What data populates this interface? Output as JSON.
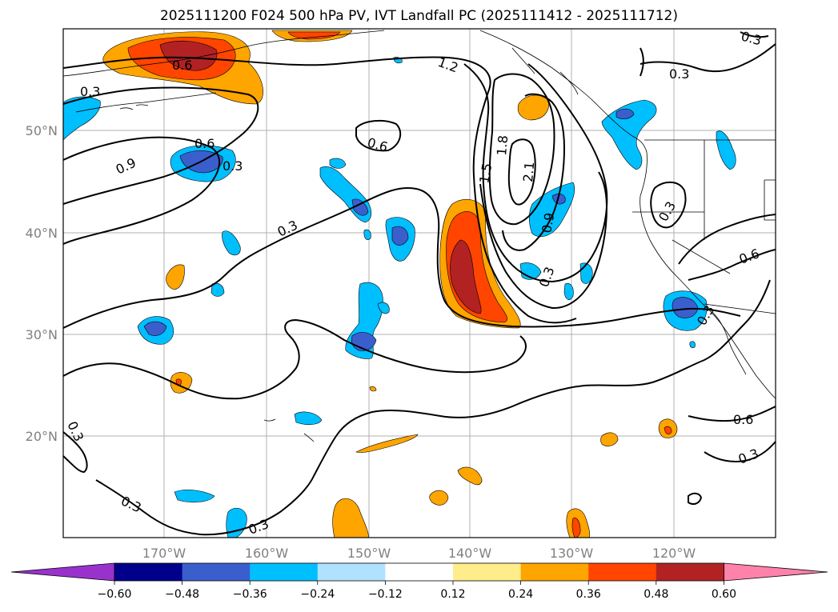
{
  "title": "2025111200 F024 500 hPa PV, IVT Landfall PC (2025111412 - 2025111712)",
  "map": {
    "lon_labels": [
      "170°W",
      "160°W",
      "150°W",
      "140°W",
      "130°W",
      "120°W"
    ],
    "lat_labels": [
      "50°N",
      "40°N",
      "30°N",
      "20°N"
    ],
    "contour_labels": [
      "0.3",
      "0.6",
      "0.9",
      "1.2",
      "1.5",
      "1.8",
      "2.1"
    ],
    "gridlines": "on",
    "coastlines": "on"
  },
  "colorbar": {
    "ticks": [
      "−0.60",
      "−0.48",
      "−0.36",
      "−0.24",
      "−0.12",
      "0.12",
      "0.24",
      "0.36",
      "0.48",
      "0.60"
    ],
    "colors": [
      "#9932cc",
      "#00008b",
      "#3a5fcd",
      "#00bfff",
      "#b0e2ff",
      "#ffffff",
      "#ffec8b",
      "#ffa500",
      "#ff4500",
      "#b22222",
      "#ff82ab"
    ]
  }
}
